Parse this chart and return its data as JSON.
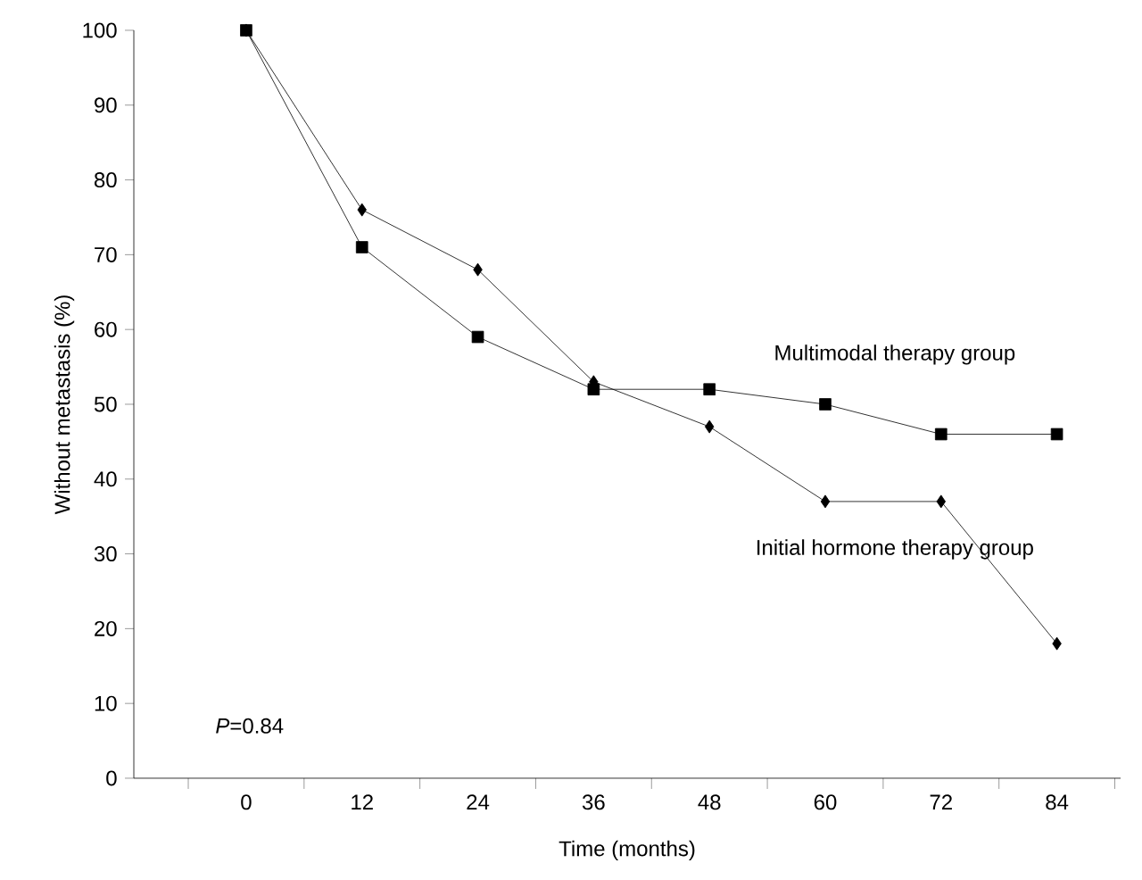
{
  "chart_data": {
    "type": "line",
    "xlabel": "Time (months)",
    "ylabel": "Without metastasis (%)",
    "categories": [
      "0",
      "12",
      "24",
      "36",
      "48",
      "60",
      "72",
      "84"
    ],
    "series": [
      {
        "name": "Initial hormone therapy group",
        "color": "#000000",
        "marker": "diamond",
        "values": [
          100,
          76,
          68,
          53,
          47,
          37,
          37,
          18
        ]
      },
      {
        "name": "Multimodal therapy group",
        "color": "#000000",
        "marker": "square",
        "values": [
          100,
          71,
          59,
          52,
          52,
          50,
          46,
          46
        ]
      }
    ],
    "ylim": [
      0,
      100
    ],
    "yticks": [
      0,
      10,
      20,
      30,
      40,
      50,
      60,
      70,
      80,
      90,
      100
    ],
    "grid": false,
    "line_style": "solid",
    "annotations": [
      "*P*=0.84"
    ]
  }
}
